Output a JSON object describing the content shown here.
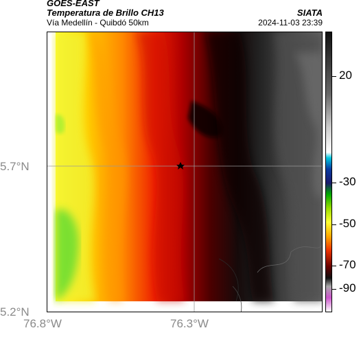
{
  "header": {
    "line1": "GOES-EAST",
    "line2": "Temperatura de Brillo CH13",
    "line3": "Vía Medellín - Quibdó 50km",
    "brand": "SIATA",
    "datetime": "2024-11-03 23:39"
  },
  "axes": {
    "lat_labels": [
      "5.7°N",
      "5.2°N"
    ],
    "lon_labels": [
      "76.8°W",
      "76.3°W"
    ]
  },
  "colorbar": {
    "tick_labels": [
      "20",
      "-30",
      "-50",
      "-70",
      "-90"
    ],
    "range": [
      -93,
      32
    ]
  },
  "map": {
    "type": "brightness-temperature-raster",
    "marker": "star-marker",
    "colors": {
      "warm_high": "#3a3a3a",
      "near_zero": "#ffffff",
      "cyan": "#00b4d8",
      "blue": "#1a1a8c",
      "green": "#33cc33",
      "yellow": "#ffff33",
      "orange": "#ff9900",
      "red": "#dd1100",
      "dark_red": "#4a0000",
      "black": "#000000",
      "magenta": "#aa2299"
    }
  }
}
